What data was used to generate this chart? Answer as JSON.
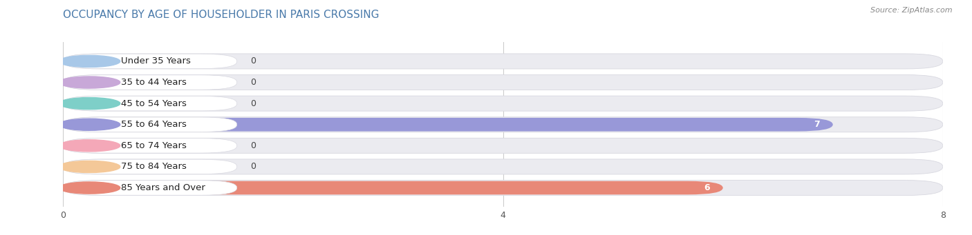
{
  "title": "OCCUPANCY BY AGE OF HOUSEHOLDER IN PARIS CROSSING",
  "source": "Source: ZipAtlas.com",
  "categories": [
    "Under 35 Years",
    "35 to 44 Years",
    "45 to 54 Years",
    "55 to 64 Years",
    "65 to 74 Years",
    "75 to 84 Years",
    "85 Years and Over"
  ],
  "values": [
    0,
    0,
    0,
    7,
    0,
    0,
    6
  ],
  "bar_colors": [
    "#a8c8e8",
    "#c8a8d8",
    "#7ecfc8",
    "#9898d8",
    "#f4a8b8",
    "#f4c898",
    "#e88878"
  ],
  "xlim": [
    0,
    8
  ],
  "xticks": [
    0,
    4,
    8
  ],
  "background_color": "#ffffff",
  "bar_bg_color": "#ebebf0",
  "title_fontsize": 11,
  "label_fontsize": 9.5,
  "value_fontsize": 9,
  "bar_height": 0.72,
  "figsize": [
    14.06,
    3.41
  ],
  "dpi": 100
}
